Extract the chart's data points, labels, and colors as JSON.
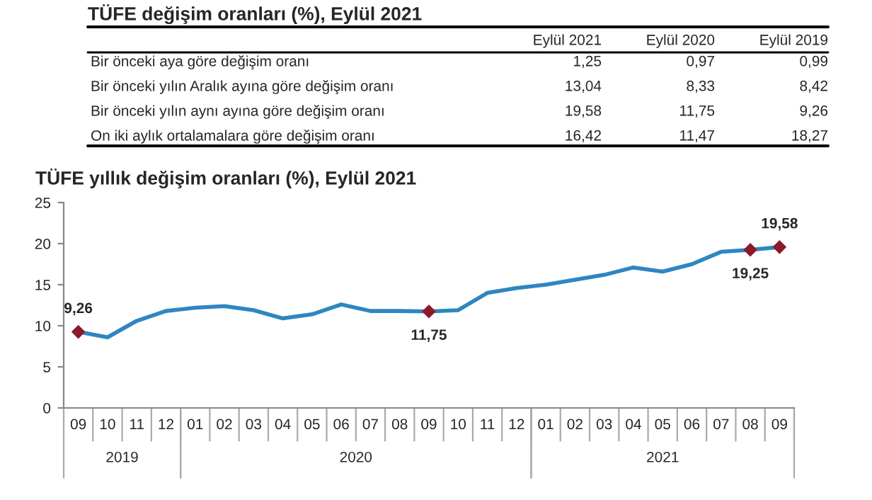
{
  "chart_data": [
    {
      "type": "other",
      "title": "TÜFE değişim oranları (%), Eylül 2021",
      "annotations": [
        "Eylül 2021",
        "Eylül 2020",
        "Eylül 2019",
        "Bir önceki aya göre değişim oranı",
        "1,25",
        "0,97",
        "0,99",
        "Bir önceki yılın Aralık ayına göre değişim oranı",
        "13,04",
        "8,33",
        "8,42",
        "Bir önceki yılın aynı ayına göre değişim oranı",
        "19,58",
        "11,75",
        "9,26",
        "On iki aylık ortalamalara göre değişim oranı",
        "16,42",
        "11,47",
        "18,27"
      ]
    },
    {
      "type": "line",
      "title": "TÜFE yıllık değişim oranları (%), Eylül 2021",
      "categories": [
        "09",
        "10",
        "11",
        "12",
        "01",
        "02",
        "03",
        "04",
        "05",
        "06",
        "07",
        "08",
        "09",
        "10",
        "11",
        "12",
        "01",
        "02",
        "03",
        "04",
        "05",
        "06",
        "07",
        "08",
        "09"
      ],
      "series": [
        {
          "color": "#2e86c1",
          "values": [
            9.26,
            8.6,
            10.6,
            11.8,
            12.2,
            12.4,
            11.9,
            10.9,
            11.4,
            12.6,
            11.8,
            11.8,
            11.75,
            11.9,
            14.0,
            14.6,
            15.0,
            15.6,
            16.2,
            17.1,
            16.6,
            17.5,
            19.0,
            19.25,
            19.58
          ],
          "value_labels": [
            "9,26",
            null,
            null,
            null,
            null,
            null,
            null,
            null,
            null,
            null,
            null,
            null,
            "11,75",
            null,
            null,
            null,
            null,
            null,
            null,
            null,
            null,
            null,
            null,
            "19,25",
            "19,58"
          ]
        }
      ],
      "annotations": [
        "2019",
        "2020",
        "2021"
      ],
      "ylim": [
        0,
        25
      ],
      "yticks": [
        0,
        5,
        10,
        15,
        20,
        25
      ],
      "line_style": "solid",
      "grid": false,
      "legend": false
    }
  ]
}
